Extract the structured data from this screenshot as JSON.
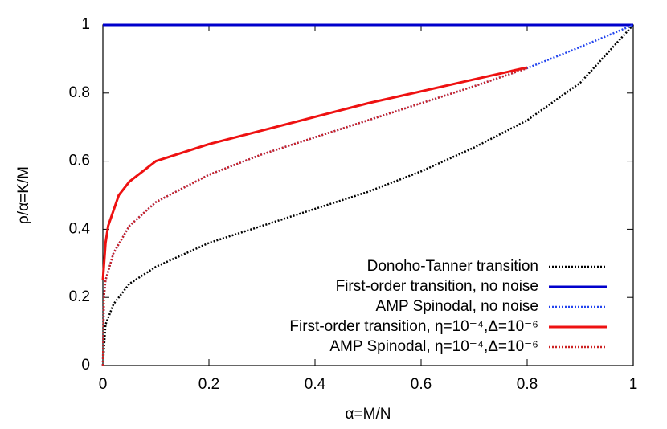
{
  "chart_data": {
    "type": "line",
    "x_label": "α=M/N",
    "y_label": "ρ/α=K/M",
    "xlim": [
      0,
      1
    ],
    "ylim": [
      0,
      1
    ],
    "xticks": [
      0,
      0.2,
      0.4,
      0.6,
      0.8,
      1
    ],
    "yticks": [
      0,
      0.2,
      0.4,
      0.6,
      0.8,
      1
    ],
    "legend": "lower right",
    "series": [
      {
        "name": "Donoho-Tanner transition",
        "color": "#000000",
        "dash": "dotted",
        "x": [
          0,
          0.005,
          0.02,
          0.05,
          0.1,
          0.2,
          0.3,
          0.4,
          0.5,
          0.6,
          0.7,
          0.8,
          0.9,
          1
        ],
        "values": [
          0,
          0.12,
          0.18,
          0.24,
          0.29,
          0.36,
          0.41,
          0.46,
          0.51,
          0.57,
          0.64,
          0.72,
          0.83,
          1
        ]
      },
      {
        "name": "First-order transition, no noise",
        "color": "#0000cc",
        "dash": "solid",
        "x": [
          0,
          1
        ],
        "values": [
          1,
          1
        ]
      },
      {
        "name": "AMP Spinodal, no noise",
        "color": "#2244ee",
        "dash": "dotted",
        "x": [
          0,
          0.002,
          0.005,
          0.02,
          0.05,
          0.1,
          0.2,
          0.3,
          0.4,
          0.5,
          0.6,
          0.7,
          0.8,
          0.9,
          1
        ],
        "values": [
          0,
          0.2,
          0.25,
          0.33,
          0.41,
          0.48,
          0.56,
          0.62,
          0.67,
          0.72,
          0.77,
          0.82,
          0.873,
          0.935,
          1
        ]
      },
      {
        "name": "First-order transition, η=10⁻⁴,Δ=10⁻⁶",
        "color": "#ee1111",
        "dash": "solid",
        "x": [
          0,
          0.005,
          0.01,
          0.03,
          0.05,
          0.1,
          0.2,
          0.3,
          0.4,
          0.5,
          0.6,
          0.7,
          0.8
        ],
        "values": [
          0.25,
          0.36,
          0.41,
          0.5,
          0.54,
          0.6,
          0.65,
          0.69,
          0.73,
          0.77,
          0.805,
          0.84,
          0.875
        ]
      },
      {
        "name": "AMP Spinodal, η=10⁻⁴,Δ=10⁻⁶",
        "color": "#cc2222",
        "dash": "dotted",
        "x": [
          0,
          0.002,
          0.005,
          0.02,
          0.05,
          0.1,
          0.2,
          0.3,
          0.4,
          0.5,
          0.6,
          0.7,
          0.8
        ],
        "values": [
          0,
          0.2,
          0.25,
          0.33,
          0.41,
          0.48,
          0.56,
          0.62,
          0.67,
          0.72,
          0.77,
          0.82,
          0.873
        ]
      }
    ]
  }
}
